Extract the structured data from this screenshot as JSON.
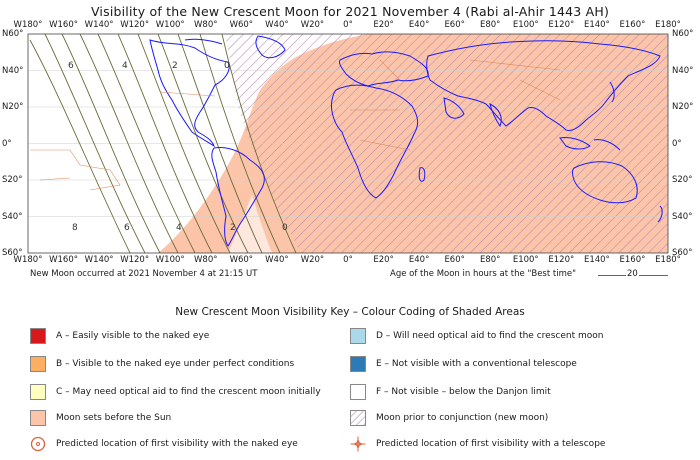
{
  "title": "Visibility of the New Crescent Moon for 2021 November 4 (Rabi al-Ahir 1443 AH)",
  "lon_labels": [
    "W180°",
    "W160°",
    "W140°",
    "W120°",
    "W100°",
    "W80°",
    "W60°",
    "W40°",
    "W20°",
    "0°",
    "E20°",
    "E40°",
    "E60°",
    "E80°",
    "E100°",
    "E120°",
    "E140°",
    "E160°",
    "E180°"
  ],
  "lat_labels": [
    "N60°",
    "N40°",
    "N20°",
    "0°",
    "S20°",
    "S40°",
    "S60°"
  ],
  "age_numbers_north": [
    "6",
    "4",
    "2",
    "0"
  ],
  "age_numbers_south": [
    "8",
    "6",
    "4",
    "2",
    "0"
  ],
  "new_moon_text": "New Moon occurred at 2021 November 4 at 21:15 UT",
  "age_legend_text": "Age of the Moon in hours at the \"Best time\"",
  "age_legend_value": "20",
  "key_title": "New Crescent Moon Visibility Key – Colour Coding of Shaded Areas",
  "colors": {
    "A": "#d7191c",
    "B": "#fdae61",
    "C": "#ffffbf",
    "D": "#abd9e9",
    "E": "#2c7bb6",
    "F": "#ffffff",
    "moonset": "#fcc5aa",
    "conjunction": "#b58aa8",
    "coast": "#1a1aff",
    "border": "#d98c5f",
    "contour": "#6b6b3a"
  },
  "key": {
    "A": "A – Easily visible to the naked eye",
    "B": "B – Visible to the naked eye under perfect conditions",
    "C": "C – May need optical aid to find the crescent moon initially",
    "moonset": "Moon sets before the Sun",
    "naked_eye": "Predicted location of first visibility with the naked eye",
    "D": "D – Will need optical aid to find the crescent moon",
    "E": "E – Not visible with a conventional telescope",
    "F": "F – Not visible – below the Danjon limit",
    "conjunction": "Moon prior to conjunction (new moon)",
    "telescope": "Predicted location of first visibility with a telescope"
  },
  "icons": {
    "naked_eye": "target-circle-icon",
    "telescope": "crosshair-star-icon"
  }
}
